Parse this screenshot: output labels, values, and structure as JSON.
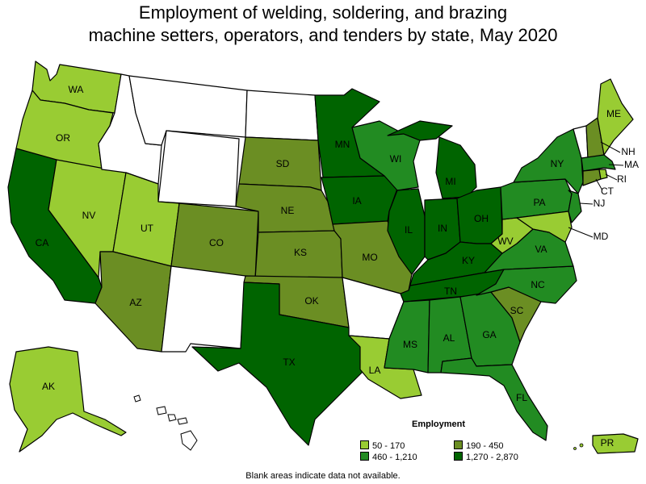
{
  "title": {
    "line1": "Employment of welding, soldering, and brazing",
    "line2": "machine setters, operators, and tenders by state, May 2020"
  },
  "legend": {
    "title": "Employment",
    "items": [
      {
        "label": "50 - 170",
        "color": "#99cc33"
      },
      {
        "label": "190 - 450",
        "color": "#6b8e23"
      },
      {
        "label": "460 - 1,210",
        "color": "#228b22"
      },
      {
        "label": "1,270 - 2,870",
        "color": "#006400"
      }
    ]
  },
  "note": "Blank areas indicate data not available.",
  "colors": {
    "c1": "#99cc33",
    "c2": "#6b8e23",
    "c3": "#228b22",
    "c4": "#006400",
    "na": "#ffffff"
  },
  "states": [
    {
      "code": "WA",
      "cls": 1
    },
    {
      "code": "OR",
      "cls": 1
    },
    {
      "code": "CA",
      "cls": 4
    },
    {
      "code": "NV",
      "cls": 1
    },
    {
      "code": "UT",
      "cls": 1
    },
    {
      "code": "AZ",
      "cls": 2
    },
    {
      "code": "CO",
      "cls": 2
    },
    {
      "code": "SD",
      "cls": 2
    },
    {
      "code": "NE",
      "cls": 2
    },
    {
      "code": "KS",
      "cls": 2
    },
    {
      "code": "OK",
      "cls": 2
    },
    {
      "code": "TX",
      "cls": 4
    },
    {
      "code": "MN",
      "cls": 4
    },
    {
      "code": "IA",
      "cls": 4
    },
    {
      "code": "MO",
      "cls": 2
    },
    {
      "code": "LA",
      "cls": 1
    },
    {
      "code": "WI",
      "cls": 3
    },
    {
      "code": "IL",
      "cls": 4
    },
    {
      "code": "MS",
      "cls": 3
    },
    {
      "code": "MI",
      "cls": 4
    },
    {
      "code": "IN",
      "cls": 4
    },
    {
      "code": "OH",
      "cls": 4
    },
    {
      "code": "KY",
      "cls": 4
    },
    {
      "code": "TN",
      "cls": 4
    },
    {
      "code": "AL",
      "cls": 3
    },
    {
      "code": "GA",
      "cls": 3
    },
    {
      "code": "FL",
      "cls": 3
    },
    {
      "code": "SC",
      "cls": 2
    },
    {
      "code": "NC",
      "cls": 3
    },
    {
      "code": "VA",
      "cls": 3
    },
    {
      "code": "WV",
      "cls": 1
    },
    {
      "code": "PA",
      "cls": 3
    },
    {
      "code": "NY",
      "cls": 3
    },
    {
      "code": "ME",
      "cls": 1
    },
    {
      "code": "NH",
      "cls": 2
    },
    {
      "code": "MA",
      "cls": 3
    },
    {
      "code": "CT",
      "cls": 2
    },
    {
      "code": "RI",
      "cls": 1
    },
    {
      "code": "NJ",
      "cls": 3
    },
    {
      "code": "MD",
      "cls": 1
    },
    {
      "code": "AK",
      "cls": 1
    },
    {
      "code": "PR",
      "cls": 1
    }
  ]
}
